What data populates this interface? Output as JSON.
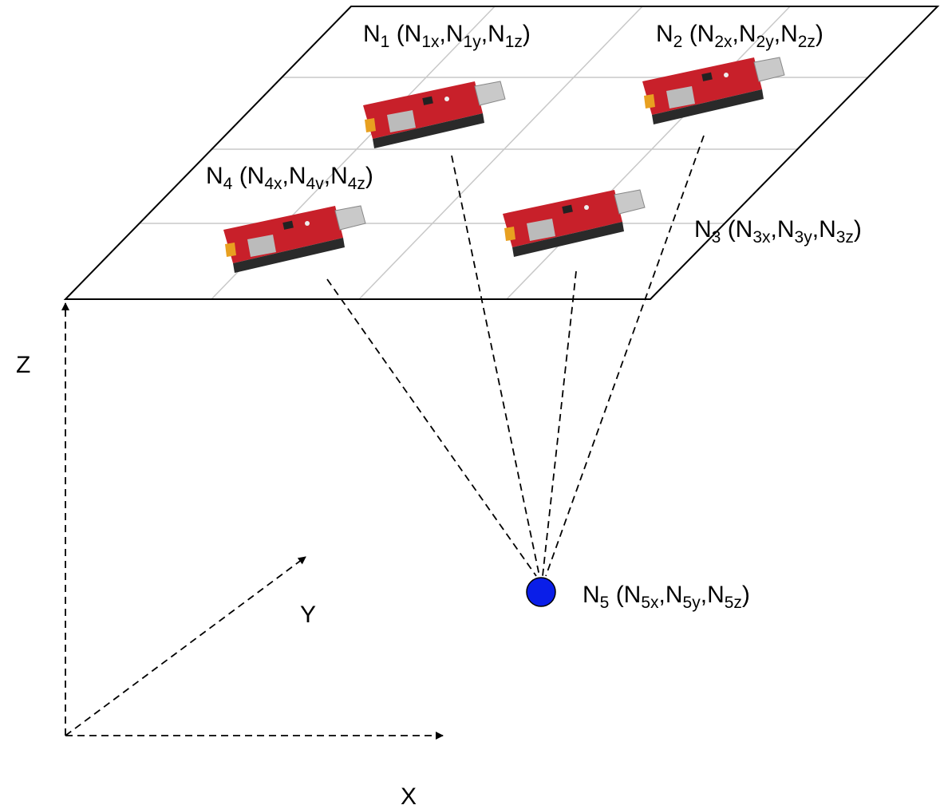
{
  "nodes": [
    {
      "label": [
        "N",
        "1",
        " (N",
        "1x",
        ",N",
        "1y",
        ",N",
        "1z",
        ")"
      ]
    },
    {
      "label": [
        "N",
        "2",
        " (N",
        "2x",
        ",N",
        "2y",
        ",N",
        "2z",
        ")"
      ]
    },
    {
      "label": [
        "N",
        "3",
        " (N",
        "3x",
        ",N",
        "3y",
        ",N",
        "3z",
        ")"
      ]
    },
    {
      "label": [
        "N",
        "4",
        " (N",
        "4x",
        ",N",
        "4v",
        ",N",
        "4z",
        ")"
      ]
    },
    {
      "label": [
        "N",
        "5",
        " (N",
        "5x",
        ",N",
        "5y",
        ",N",
        "5z",
        ")"
      ]
    }
  ],
  "axes": {
    "z": "Z",
    "y": "Y",
    "x": "X"
  }
}
